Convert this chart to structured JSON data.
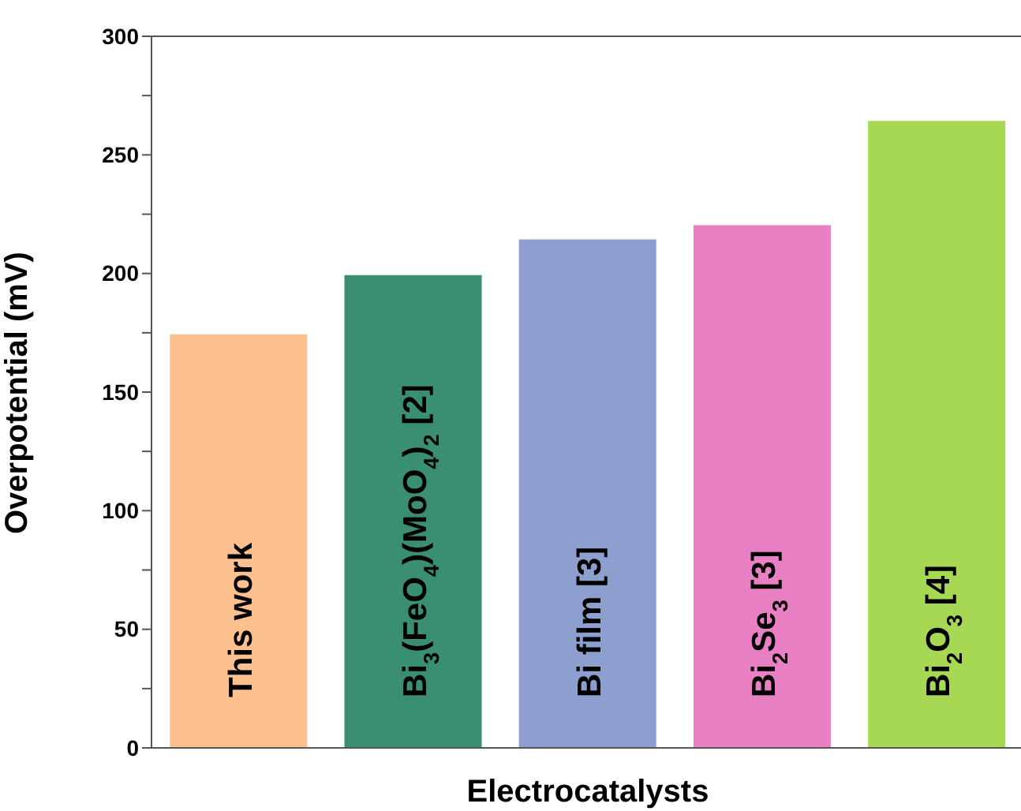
{
  "chart_data": {
    "type": "bar",
    "xlabel": "Electrocatalysts",
    "ylabel": "Overpotential (mV)",
    "categories": [
      "This work",
      "Bi$_{3}$(FeO$_{4}$)(MoO$_{4}$)$_{2}$ [2]",
      "Bi film [3]",
      "Bi$_{2}$Se$_{3}$ [3]",
      "Bi$_{2}$O$_{3}$ [4]"
    ],
    "values": [
      174,
      199,
      214,
      220,
      264
    ],
    "colors": [
      "#fdc08f",
      "#3a8f72",
      "#8c9fcf",
      "#e880c3",
      "#a6d854"
    ],
    "ylim": [
      0,
      300
    ],
    "yticks": [
      0,
      {
        "value": 25,
        "label": null
      },
      50,
      {
        "value": 75,
        "label": null
      },
      100,
      {
        "value": 125,
        "label": null
      },
      150,
      {
        "value": 175,
        "label": null
      },
      200,
      {
        "value": 225,
        "label": null
      },
      250,
      {
        "value": 275,
        "label": null
      },
      300
    ],
    "grid": false,
    "legend": false
  }
}
